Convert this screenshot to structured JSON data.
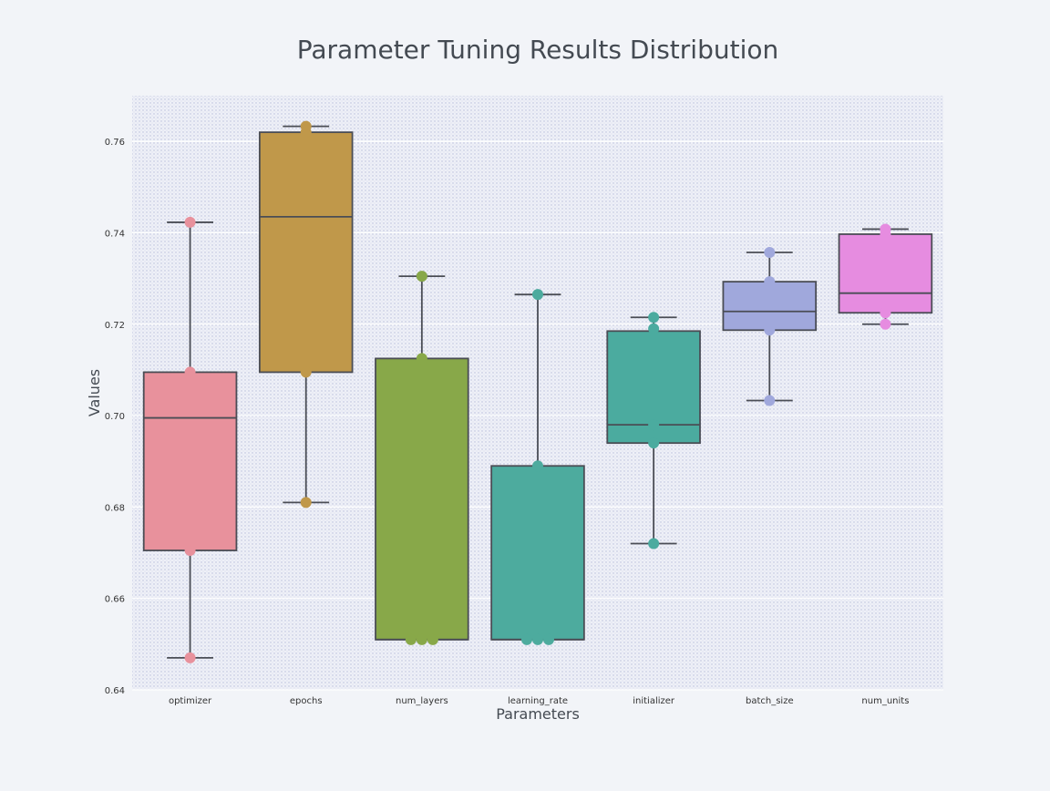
{
  "chart_data": {
    "type": "box",
    "title": "Parameter Tuning Results Distribution",
    "xlabel": "Parameters",
    "ylabel": "Values",
    "ylim": [
      0.64,
      0.77
    ],
    "yticks": [
      "0.64",
      "0.66",
      "0.68",
      "0.70",
      "0.72",
      "0.74",
      "0.76"
    ],
    "grid": true,
    "categories": [
      "optimizer",
      "epochs",
      "num_layers",
      "learning_rate",
      "initializer",
      "batch_size",
      "num_units"
    ],
    "boxes": [
      {
        "name": "optimizer",
        "color": "#e8919c",
        "whisker_low": 0.647,
        "q1": 0.6705,
        "median": 0.6995,
        "q3": 0.7095,
        "whisker_high": 0.7423,
        "points": [
          0.647,
          0.6705,
          0.7095,
          0.7423
        ]
      },
      {
        "name": "epochs",
        "color": "#c0984a",
        "whisker_low": 0.681,
        "q1": 0.7095,
        "median": 0.7435,
        "q3": 0.762,
        "whisker_high": 0.7633,
        "points": [
          0.681,
          0.7095,
          0.762,
          0.7633
        ]
      },
      {
        "name": "num_layers",
        "color": "#88a849",
        "whisker_low": 0.651,
        "q1": 0.651,
        "median": 0.651,
        "q3": 0.7125,
        "whisker_high": 0.7305,
        "points": [
          0.651,
          0.651,
          0.651,
          0.7125,
          0.7305
        ]
      },
      {
        "name": "learning_rate",
        "color": "#4dab9e",
        "whisker_low": 0.651,
        "q1": 0.651,
        "median": 0.651,
        "q3": 0.689,
        "whisker_high": 0.7265,
        "points": [
          0.651,
          0.651,
          0.651,
          0.689,
          0.7265
        ]
      },
      {
        "name": "initializer",
        "color": "#4bab9f",
        "whisker_low": 0.672,
        "q1": 0.694,
        "median": 0.698,
        "q3": 0.7185,
        "whisker_high": 0.7215,
        "points": [
          0.672,
          0.694,
          0.698,
          0.719,
          0.7215
        ]
      },
      {
        "name": "batch_size",
        "color": "#a0a8dc",
        "whisker_low": 0.7033,
        "q1": 0.7187,
        "median": 0.7228,
        "q3": 0.7293,
        "whisker_high": 0.7357,
        "points": [
          0.7033,
          0.7187,
          0.7293,
          0.7357
        ]
      },
      {
        "name": "num_units",
        "color": "#e68ce0",
        "whisker_low": 0.72,
        "q1": 0.7225,
        "median": 0.7268,
        "q3": 0.7397,
        "whisker_high": 0.7408,
        "points": [
          0.72,
          0.7225,
          0.7397,
          0.7408
        ]
      }
    ]
  }
}
